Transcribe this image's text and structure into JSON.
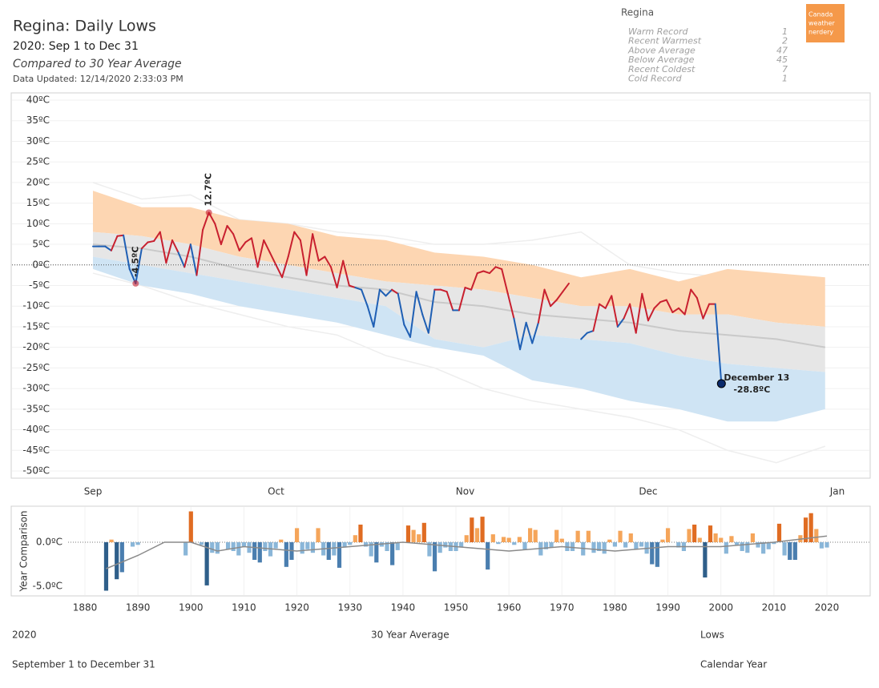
{
  "header": {
    "title": "Regina: Daily Lows",
    "subtitle": "2020: Sep 1 to Dec 31",
    "comparison": "Compared to 30 Year Average",
    "updated": "Data Updated: 12/14/2020 2:33:03 PM"
  },
  "summary": {
    "title": "Regina",
    "rows": [
      {
        "label": "Warm Record",
        "value": 1
      },
      {
        "label": "Recent Warmest",
        "value": 2
      },
      {
        "label": "Above Average",
        "value": 47
      },
      {
        "label": "Below Average",
        "value": 45
      },
      {
        "label": "Recent Coldest",
        "value": 7
      },
      {
        "label": "Cold Record",
        "value": 1
      }
    ]
  },
  "badge": {
    "lines": [
      "Canada",
      "weather",
      "nerdery"
    ],
    "color": "#f5994a"
  },
  "footer": {
    "left": "2020",
    "left_sub": "September 1 to December 31",
    "center": "30 Year Average",
    "right": "Lows",
    "right_sub": "Calendar Year"
  },
  "chart_data": [
    {
      "type": "line",
      "ylim": [
        -50,
        40
      ],
      "yticks": [
        {
          "value": 40,
          "label": "40ºC"
        },
        {
          "value": 35,
          "label": "35ºC"
        },
        {
          "value": 30,
          "label": "30ºC"
        },
        {
          "value": 25,
          "label": "25ºC"
        },
        {
          "value": 20,
          "label": "20ºC"
        },
        {
          "value": 15,
          "label": "15ºC"
        },
        {
          "value": 10,
          "label": "10ºC"
        },
        {
          "value": 5,
          "label": "5ºC"
        },
        {
          "value": 0,
          "label": "0ºC"
        },
        {
          "value": -5,
          "label": "-5ºC"
        },
        {
          "value": -10,
          "label": "-10ºC"
        },
        {
          "value": -15,
          "label": "-15ºC"
        },
        {
          "value": -20,
          "label": "-20ºC"
        },
        {
          "value": -25,
          "label": "-25ºC"
        },
        {
          "value": -30,
          "label": "-30ºC"
        },
        {
          "value": -35,
          "label": "-35ºC"
        },
        {
          "value": -40,
          "label": "-40ºC"
        },
        {
          "value": -45,
          "label": "-45ºC"
        },
        {
          "value": -50,
          "label": "-50ºC"
        }
      ],
      "xlim": [
        0,
        122
      ],
      "xticks": [
        {
          "value": 0,
          "label": "Sep"
        },
        {
          "value": 30,
          "label": "Oct"
        },
        {
          "value": 61,
          "label": "Nov"
        },
        {
          "value": 91,
          "label": "Dec"
        },
        {
          "value": 122,
          "label": "Jan"
        }
      ],
      "grid": true,
      "bands": {
        "x": [
          0,
          8,
          16,
          24,
          32,
          40,
          48,
          56,
          64,
          72,
          80,
          88,
          96,
          104,
          112,
          120
        ],
        "record_high": [
          20,
          16,
          17,
          11,
          10,
          8,
          7,
          5,
          5,
          6,
          8,
          0,
          -2,
          -3,
          -5,
          -6
        ],
        "upper": [
          18,
          14,
          14,
          11,
          10,
          7,
          6,
          3,
          2,
          0,
          -3,
          -1,
          -4,
          -1,
          -2,
          -3
        ],
        "above": [
          8,
          7,
          5,
          2,
          0,
          -2,
          -4,
          -5,
          -6,
          -8,
          -10,
          -10,
          -12,
          -12,
          -14,
          -15
        ],
        "average": [
          5,
          4,
          2,
          -1,
          -3,
          -5,
          -6,
          -9,
          -10,
          -12,
          -13,
          -14,
          -16,
          -17,
          -18,
          -20
        ],
        "below": [
          2,
          0,
          -2,
          -4,
          -6,
          -8,
          -10,
          -18,
          -20,
          -17,
          -18,
          -19,
          -22,
          -24,
          -25,
          -26
        ],
        "lower": [
          -1,
          -5,
          -7,
          -10,
          -12,
          -14,
          -17,
          -20,
          -22,
          -28,
          -30,
          -33,
          -35,
          -38,
          -38,
          -35
        ],
        "record_low": [
          -2,
          -5,
          -9,
          -12,
          -15,
          -17,
          -22,
          -25,
          -30,
          -33,
          -35,
          -37,
          -40,
          -45,
          -48,
          -44
        ],
        "colors": {
          "warm": "#fdd6b2",
          "normal": "#e6e6e6",
          "cold": "#cfe4f4",
          "average": "#c9c9c9",
          "record": "#eeeeee"
        }
      },
      "series": [
        {
          "color_above": "#c8202f",
          "color_below": "#1f5fb4",
          "point_color": "#0b2a6b",
          "x": [
            0,
            1,
            2,
            3,
            4,
            5,
            6,
            7,
            8,
            9,
            10,
            11,
            12,
            13,
            14,
            15,
            16,
            17,
            18,
            19,
            20,
            21,
            22,
            23,
            24,
            25,
            26,
            27,
            28,
            29,
            30,
            31,
            32,
            33,
            34,
            35,
            36,
            37,
            38,
            39,
            40,
            41,
            42,
            43,
            44,
            45,
            46,
            47,
            48,
            49,
            50,
            51,
            52,
            53,
            54,
            55,
            56,
            57,
            58,
            59,
            60,
            61,
            62,
            63,
            64,
            65,
            66,
            67,
            68,
            69,
            70,
            71,
            72,
            73,
            74,
            75,
            76,
            77,
            78,
            79,
            80,
            81,
            82,
            83,
            84,
            85,
            86,
            87,
            88,
            89,
            90,
            91,
            92,
            93,
            94,
            95,
            96,
            97,
            98,
            99,
            100,
            101,
            102,
            103
          ],
          "values": [
            4.5,
            4.5,
            4.5,
            3.5,
            7,
            7.2,
            -1,
            -4.5,
            4,
            5.5,
            5.8,
            8,
            0.5,
            6,
            3,
            -0.5,
            5,
            -2.5,
            8.5,
            12.7,
            10,
            5,
            9.5,
            7.5,
            3.5,
            5.5,
            6.5,
            -0.5,
            6,
            3,
            0,
            -3,
            2,
            8,
            6,
            -2.5,
            7.5,
            1,
            2,
            -0.5,
            -5.5,
            1,
            -5,
            -5.5,
            -6,
            -10,
            -15,
            -6,
            -7.5,
            -6,
            -7,
            -14.5,
            -17.5,
            -6.5,
            -12,
            -16.5,
            -6,
            -6,
            -6.5,
            -11,
            -11,
            -5.5,
            -6,
            -2,
            -1.5,
            -2,
            -0.5,
            -1,
            -7,
            -13,
            -20.5,
            -14,
            -19,
            -14,
            -6,
            -10,
            -8.5,
            -6.5,
            -4.5,
            null,
            -18,
            -16.5,
            -16,
            -9.5,
            -10.5,
            -7.5,
            -15,
            -13,
            -9.5,
            -16.5,
            -7,
            -13.5,
            -10.5,
            -9,
            -8.5,
            -11.5,
            -10.5,
            -12,
            -6,
            -8,
            -13,
            -9.5,
            -9.5,
            -28.8
          ],
          "value_labels": [
            null,
            null,
            null,
            null,
            null,
            null,
            null,
            "-4.5ºC",
            null,
            null,
            null,
            null,
            null,
            null,
            null,
            null,
            null,
            null,
            null,
            "12.7ºC",
            null,
            null,
            null,
            null,
            null,
            null,
            null,
            null,
            null,
            null,
            null,
            null,
            null,
            null,
            null,
            null,
            null,
            null,
            null,
            null,
            null,
            null,
            null,
            null,
            null,
            null,
            null,
            null,
            null,
            null,
            null,
            null,
            null,
            null,
            null,
            null,
            null,
            null,
            null,
            null,
            null,
            null,
            null,
            null,
            null,
            null,
            null,
            null,
            null,
            null,
            null,
            null,
            null,
            null,
            null,
            null,
            null,
            null,
            null,
            null,
            null,
            null,
            null,
            null,
            null,
            null,
            null,
            null,
            null,
            null,
            null,
            null,
            null,
            null,
            null,
            null,
            null,
            null,
            null,
            null,
            null,
            null,
            null,
            "-28.8ºC"
          ],
          "last_date": "December 13"
        }
      ]
    },
    {
      "type": "bar",
      "ylabel": "Year Comparison",
      "ylim": [
        -5.7,
        3.6
      ],
      "yticks": [
        {
          "value": 0,
          "label": "0.0ºC"
        },
        {
          "value": -5,
          "label": "-5.0ºC"
        }
      ],
      "xlim": [
        1870,
        2025
      ],
      "xticks": [
        1880,
        1890,
        1900,
        1910,
        1920,
        1930,
        1940,
        1950,
        1960,
        1970,
        1980,
        1990,
        2000,
        2010,
        2020
      ],
      "x": [
        1884,
        1885,
        1886,
        1887,
        1888,
        1889,
        1890,
        1891,
        1892,
        1893,
        1894,
        1895,
        1896,
        1897,
        1898,
        1899,
        1900,
        1901,
        1902,
        1903,
        1904,
        1905,
        1906,
        1907,
        1908,
        1909,
        1910,
        1911,
        1912,
        1913,
        1914,
        1915,
        1916,
        1917,
        1918,
        1919,
        1920,
        1921,
        1922,
        1923,
        1924,
        1925,
        1926,
        1927,
        1928,
        1929,
        1930,
        1931,
        1932,
        1933,
        1934,
        1935,
        1936,
        1937,
        1938,
        1939,
        1940,
        1941,
        1942,
        1943,
        1944,
        1945,
        1946,
        1947,
        1948,
        1949,
        1950,
        1951,
        1952,
        1953,
        1954,
        1955,
        1956,
        1957,
        1958,
        1959,
        1960,
        1961,
        1962,
        1963,
        1964,
        1965,
        1966,
        1967,
        1968,
        1969,
        1970,
        1971,
        1972,
        1973,
        1974,
        1975,
        1976,
        1977,
        1978,
        1979,
        1980,
        1981,
        1982,
        1983,
        1984,
        1985,
        1986,
        1987,
        1988,
        1989,
        1990,
        1991,
        1992,
        1993,
        1994,
        1995,
        1996,
        1997,
        1998,
        1999,
        2000,
        2001,
        2002,
        2003,
        2004,
        2005,
        2006,
        2007,
        2008,
        2009,
        2010,
        2011,
        2012,
        2013,
        2014,
        2015,
        2016,
        2017,
        2018,
        2019,
        2020
      ],
      "values": [
        -5.5,
        0.3,
        -4.2,
        -3.4,
        0,
        -0.5,
        -0.3,
        0,
        0,
        0,
        0,
        0,
        0,
        0,
        0,
        -1.5,
        3.5,
        0,
        -0.3,
        -4.9,
        -1.2,
        -1.3,
        0,
        -0.8,
        -1,
        -1.5,
        -0.5,
        -1.2,
        -2,
        -2.3,
        -1,
        -1.6,
        -0.7,
        0.3,
        -2.8,
        -2,
        1.6,
        -1.3,
        -0.8,
        -1.2,
        1.6,
        -1.5,
        -2,
        -1.5,
        -2.9,
        -0.6,
        -0.3,
        0.8,
        2,
        -0.5,
        -1.6,
        -2.3,
        -0.5,
        -1,
        -2.6,
        -0.9,
        0,
        1.9,
        1.4,
        0.9,
        2.2,
        -1.6,
        -3.3,
        -1.2,
        -0.6,
        -1,
        -1,
        -0.6,
        0.8,
        2.8,
        1.6,
        2.9,
        -3.1,
        0.9,
        -0.2,
        0.6,
        0.5,
        -0.3,
        0.6,
        -0.9,
        1.6,
        1.4,
        -1.5,
        -0.8,
        -0.6,
        1.4,
        0.4,
        -1,
        -1,
        1.3,
        -1.5,
        1.3,
        -1.2,
        -1,
        -1.3,
        0.3,
        -0.5,
        1.3,
        -0.6,
        1,
        -0.8,
        -0.5,
        -1.3,
        -2.5,
        -2.8,
        0.3,
        1.6,
        0,
        -0.6,
        -1,
        1.5,
        2,
        0.5,
        -4,
        1.9,
        1,
        0.5,
        -1.3,
        0.7,
        -0.3,
        -1,
        -1.2,
        1,
        -0.6,
        -1.3,
        -0.8,
        -0.2,
        2.1,
        -1.5,
        -2,
        -2,
        0.8,
        2.8,
        3.3,
        1.5,
        -0.7,
        -0.6
      ],
      "colors": {
        "warm_strong": "#e06c22",
        "warm": "#f5a55a",
        "cold": "#8ab6d8",
        "cold_strong": "#4a7eaf",
        "cold_extreme": "#2f5f8a",
        "trend": "#8a8a8a"
      },
      "trend": {
        "x": [
          1884,
          1890,
          1895,
          1900,
          1905,
          1910,
          1920,
          1930,
          1940,
          1950,
          1960,
          1970,
          1980,
          1990,
          2000,
          2010,
          2020
        ],
        "values": [
          -3,
          -1.5,
          0,
          0,
          -1,
          -0.5,
          -1,
          -0.5,
          0,
          -0.5,
          -1,
          -0.5,
          -1,
          -0.5,
          -0.5,
          0,
          0.7
        ]
      }
    }
  ]
}
